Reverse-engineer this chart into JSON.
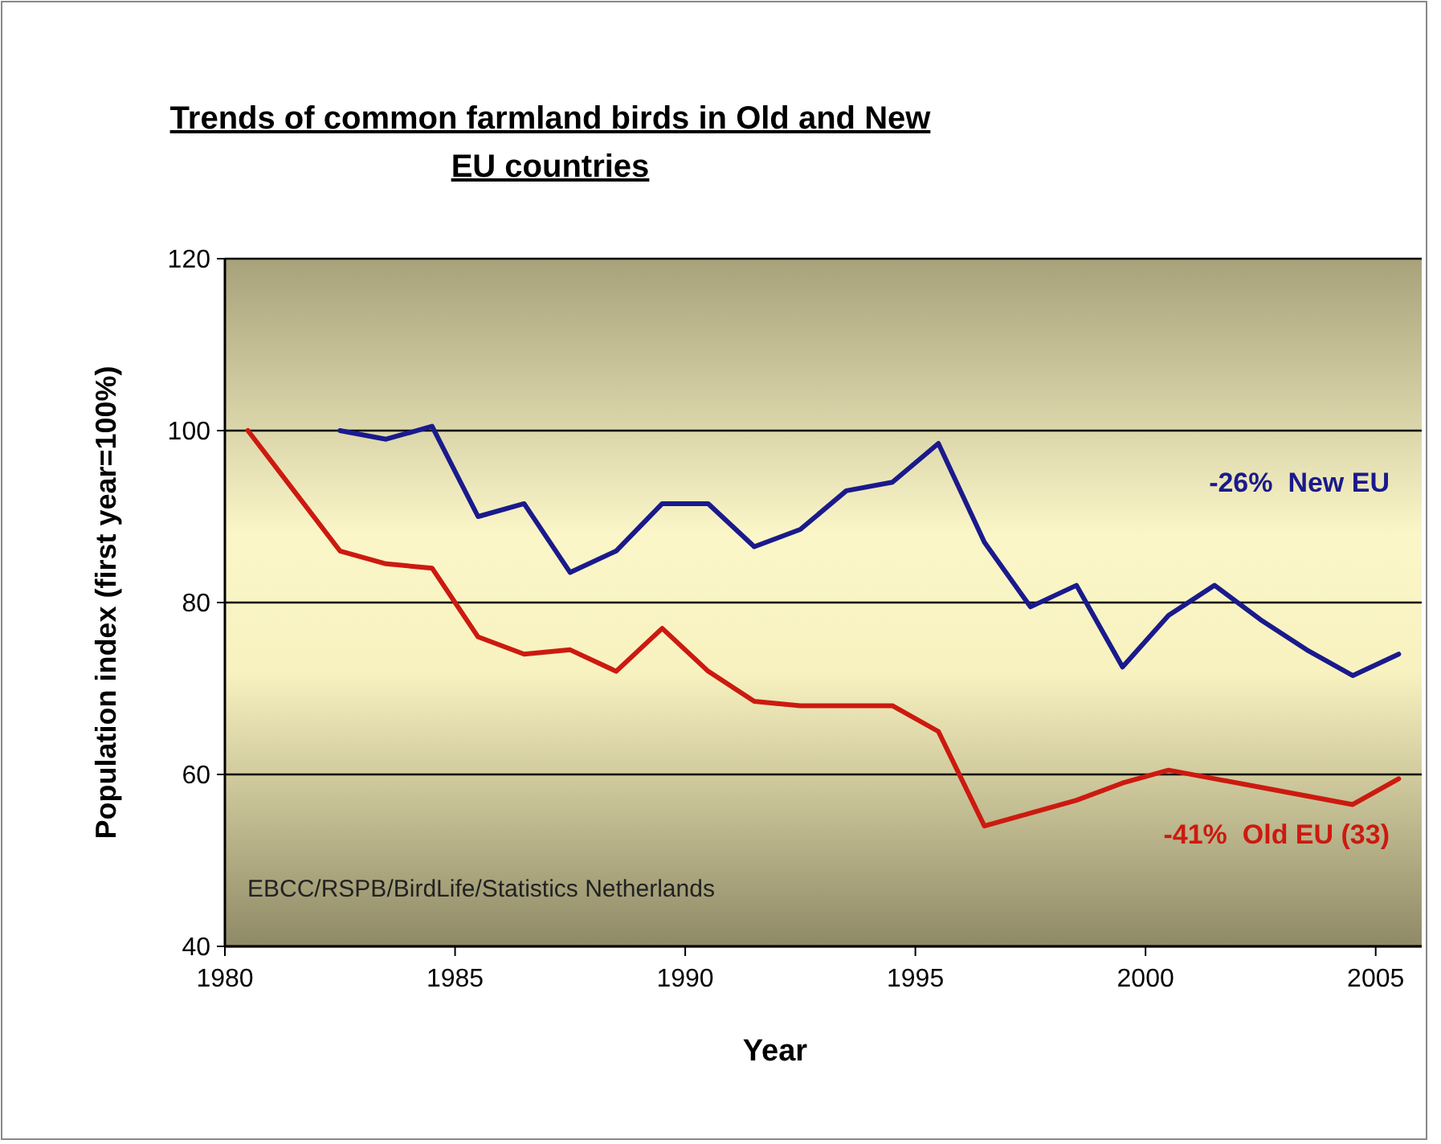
{
  "chart_data": {
    "type": "line",
    "title": "Trends of common farmland birds in Old and New EU countries",
    "xlabel": "Year",
    "ylabel": "Population index (first year=100%)",
    "xlim": [
      1980,
      2006
    ],
    "xticks": [
      1980,
      1985,
      1990,
      1995,
      2000,
      2005
    ],
    "ylim": [
      40,
      120
    ],
    "yticks": [
      40,
      60,
      80,
      100,
      120
    ],
    "grid": "y",
    "marker": "none",
    "line_style": "solid",
    "series": [
      {
        "name": "-26%  New EU",
        "color": "#1a1a8c",
        "x": [
          1982.5,
          1983.5,
          1984.5,
          1985.5,
          1986.5,
          1987.5,
          1988.5,
          1989.5,
          1990.5,
          1991.5,
          1992.5,
          1993.5,
          1994.5,
          1995.5,
          1996.5,
          1997.5,
          1998.5,
          1999.5,
          2000.5,
          2001.5,
          2002.5,
          2003.5,
          2004.5,
          2005.5
        ],
        "values": [
          100,
          99,
          100.5,
          90,
          91.5,
          83.5,
          86,
          91.5,
          91.5,
          86.5,
          88.5,
          93,
          94,
          98.5,
          87,
          79.5,
          82,
          72.5,
          78.5,
          82,
          78,
          74.5,
          71.5,
          74
        ]
      },
      {
        "name": "-41%  Old EU (33)",
        "color": "#cc1a10",
        "x": [
          1980.5,
          1981.5,
          1982.5,
          1983.5,
          1984.5,
          1985.5,
          1986.5,
          1987.5,
          1988.5,
          1989.5,
          1990.5,
          1991.5,
          1992.5,
          1993.5,
          1994.5,
          1995.5,
          1996.5,
          1997.5,
          1998.5,
          1999.5,
          2000.5,
          2001.5,
          2002.5,
          2003.5,
          2004.5,
          2005.5
        ],
        "values": [
          100,
          93,
          86,
          84.5,
          84,
          76,
          74,
          74.5,
          72,
          77,
          72,
          68.5,
          68,
          68,
          68,
          65,
          54,
          55.5,
          57,
          59,
          60.5,
          59.5,
          58.5,
          57.5,
          56.5,
          59.5
        ]
      }
    ],
    "annotations": [
      "EBCC/RSPB/BirdLife/Statistics Netherlands"
    ]
  }
}
